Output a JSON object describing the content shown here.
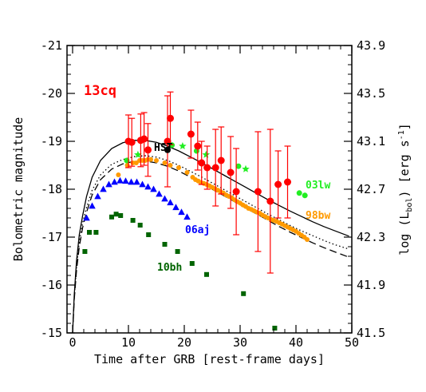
{
  "chart_data": {
    "type": "scatter",
    "title": "13cq",
    "xlabel": "Time after GRB [rest-frame days]",
    "ylabel": "Bolometric magnitude",
    "y2label_main": "log (L",
    "y2label_sub": "bol",
    "y2label_tail": ") [erg s",
    "y2label_sup": "-1",
    "y2label_end": "]",
    "xlim": [
      -1,
      50
    ],
    "ylim": [
      -15,
      -21
    ],
    "x_ticks": [
      "0",
      "10",
      "20",
      "30",
      "40",
      "50"
    ],
    "y_ticks": [
      "-15",
      "-16",
      "-17",
      "-18",
      "-19",
      "-20",
      "-21"
    ],
    "y2_ticks": [
      "41.5",
      "41.9",
      "42.3",
      "42.7",
      "43.1",
      "43.5",
      "43.9"
    ],
    "grid": false,
    "series": [
      {
        "name": "13cq",
        "color": "#ff0000",
        "marker": "circle",
        "points": [
          {
            "x": 10.0,
            "y": -19.0,
            "err": 0.55
          },
          {
            "x": 10.6,
            "y": -18.98,
            "err": 0.5
          },
          {
            "x": 12.2,
            "y": -19.02,
            "err": 0.55
          },
          {
            "x": 12.8,
            "y": -19.05,
            "err": 0.55
          },
          {
            "x": 13.5,
            "y": -18.82,
            "err": 0.55
          },
          {
            "x": 17.0,
            "y": -19.0,
            "err": 0.95
          },
          {
            "x": 17.5,
            "y": -19.48,
            "err": 0.55
          },
          {
            "x": 21.2,
            "y": -19.15,
            "err": 0.5
          },
          {
            "x": 22.4,
            "y": -18.9,
            "err": 0.5
          },
          {
            "x": 23.1,
            "y": -18.55,
            "err": 0.45
          },
          {
            "x": 24.1,
            "y": -18.45,
            "err": 0.45
          },
          {
            "x": 25.6,
            "y": -18.45,
            "err": 0.8
          },
          {
            "x": 26.6,
            "y": -18.6,
            "err": 0.7
          },
          {
            "x": 28.3,
            "y": -18.35,
            "err": 0.75
          },
          {
            "x": 29.3,
            "y": -17.95,
            "err": 0.9
          },
          {
            "x": 33.2,
            "y": -17.95,
            "err": 1.25
          },
          {
            "x": 35.4,
            "y": -17.75,
            "err": 1.5
          },
          {
            "x": 36.8,
            "y": -18.1,
            "err": 0.7
          },
          {
            "x": 38.5,
            "y": -18.15,
            "err": 0.75
          }
        ]
      },
      {
        "name": "HST",
        "color": "#000000",
        "marker": "circle",
        "points": [
          {
            "x": 17.0,
            "y": -18.82
          }
        ]
      },
      {
        "name": "03lw",
        "color": "#22ee22",
        "marker": "mixed",
        "points": [
          {
            "x": 9.7,
            "y": -18.6,
            "m": "circle"
          },
          {
            "x": 11.7,
            "y": -18.72,
            "m": "star"
          },
          {
            "x": 17.8,
            "y": -18.92,
            "m": "circle"
          },
          {
            "x": 19.7,
            "y": -18.9,
            "m": "star"
          },
          {
            "x": 22.2,
            "y": -18.8,
            "m": "circle"
          },
          {
            "x": 23.9,
            "y": -18.72,
            "m": "star"
          },
          {
            "x": 29.7,
            "y": -18.48,
            "m": "circle"
          },
          {
            "x": 31.0,
            "y": -18.42,
            "m": "star"
          },
          {
            "x": 40.6,
            "y": -17.92,
            "m": "circle"
          },
          {
            "x": 41.6,
            "y": -17.87,
            "m": "circle"
          }
        ]
      },
      {
        "name": "98bw",
        "color": "#ff9a00",
        "marker": "circle",
        "x": [
          8.2,
          9.8,
          10.8,
          11.4,
          12.0,
          12.5,
          13.0,
          13.5,
          14.0,
          15.0,
          16.5,
          17.5,
          19.0,
          20.5,
          21.5,
          22.0,
          22.5,
          23.0,
          23.5,
          24.0,
          24.5,
          25.0,
          25.5,
          26.0,
          26.5,
          27.0,
          27.5,
          28.0,
          28.5,
          29.0,
          29.5,
          30.0,
          30.5,
          31.0,
          31.5,
          32.0,
          32.5,
          33.0,
          33.5,
          34.0,
          34.5,
          35.0,
          35.5,
          36.0,
          36.5,
          37.0,
          37.5,
          38.0,
          38.5,
          39.0,
          39.5,
          40.0,
          40.5,
          41.0,
          41.5,
          42.0
        ],
        "y": [
          -18.3,
          -18.5,
          -18.55,
          -18.55,
          -18.6,
          -18.6,
          -18.6,
          -18.62,
          -18.62,
          -18.6,
          -18.55,
          -18.5,
          -18.45,
          -18.35,
          -18.25,
          -18.2,
          -18.17,
          -18.14,
          -18.12,
          -18.1,
          -18.07,
          -18.04,
          -18.01,
          -17.98,
          -17.95,
          -17.92,
          -17.88,
          -17.85,
          -17.82,
          -17.78,
          -17.74,
          -17.71,
          -17.67,
          -17.64,
          -17.6,
          -17.58,
          -17.55,
          -17.52,
          -17.5,
          -17.46,
          -17.43,
          -17.4,
          -17.37,
          -17.35,
          -17.33,
          -17.3,
          -17.27,
          -17.24,
          -17.21,
          -17.18,
          -17.15,
          -17.12,
          -17.08,
          -17.04,
          -17.0,
          -16.95
        ]
      },
      {
        "name": "06aj",
        "color": "#0000ff",
        "marker": "triangle",
        "x": [
          2.5,
          3.5,
          4.5,
          5.5,
          6.5,
          7.5,
          8.5,
          9.5,
          10.5,
          11.5,
          12.5,
          13.5,
          14.5,
          15.5,
          16.5,
          17.5,
          18.5,
          19.5,
          20.5
        ],
        "y": [
          -17.4,
          -17.65,
          -17.85,
          -18.0,
          -18.1,
          -18.15,
          -18.18,
          -18.17,
          -18.15,
          -18.15,
          -18.1,
          -18.05,
          -18.0,
          -17.9,
          -17.8,
          -17.72,
          -17.62,
          -17.52,
          -17.42
        ]
      },
      {
        "name": "10bh",
        "color": "#006400",
        "marker": "square",
        "x": [
          2.2,
          3.0,
          4.2,
          7.0,
          7.8,
          8.6,
          10.8,
          12.1,
          13.6,
          16.5,
          18.8,
          21.4,
          24.0,
          30.6,
          36.2
        ],
        "y": [
          -16.7,
          -17.1,
          -17.1,
          -17.42,
          -17.48,
          -17.45,
          -17.35,
          -17.25,
          -17.05,
          -16.85,
          -16.7,
          -16.45,
          -16.22,
          -15.82,
          -15.1
        ]
      }
    ],
    "curves": [
      {
        "style": "solid",
        "x": [
          0.0,
          0.3,
          0.7,
          1.2,
          1.8,
          2.5,
          3.5,
          5,
          7,
          9,
          11,
          13,
          15,
          17,
          19,
          21,
          23,
          25,
          27,
          29,
          31,
          33,
          35,
          37,
          39,
          41,
          43,
          45,
          47,
          49.5
        ],
        "y": [
          -15.0,
          -15.8,
          -16.5,
          -17.05,
          -17.45,
          -17.85,
          -18.25,
          -18.6,
          -18.85,
          -18.97,
          -19.02,
          -19.02,
          -18.98,
          -18.9,
          -18.8,
          -18.68,
          -18.56,
          -18.43,
          -18.3,
          -18.17,
          -18.04,
          -17.91,
          -17.78,
          -17.66,
          -17.54,
          -17.43,
          -17.32,
          -17.22,
          -17.13,
          -17.02
        ]
      },
      {
        "style": "dotted",
        "x": [
          0.0,
          0.3,
          0.7,
          1.2,
          1.8,
          2.5,
          3.5,
          5,
          7,
          9,
          11,
          13,
          15,
          17,
          19,
          21,
          23,
          25,
          27,
          29,
          31,
          33,
          35,
          37,
          39,
          41,
          43,
          45,
          47,
          49.5
        ],
        "y": [
          -15.0,
          -15.75,
          -16.35,
          -16.9,
          -17.3,
          -17.62,
          -17.98,
          -18.3,
          -18.52,
          -18.62,
          -18.68,
          -18.7,
          -18.67,
          -18.6,
          -18.5,
          -18.38,
          -18.26,
          -18.13,
          -18.0,
          -17.87,
          -17.74,
          -17.61,
          -17.48,
          -17.36,
          -17.24,
          -17.13,
          -17.03,
          -16.93,
          -16.84,
          -16.75
        ]
      },
      {
        "style": "dashed",
        "x": [
          0.0,
          0.3,
          0.7,
          1.2,
          1.8,
          2.5,
          3.5,
          5,
          7,
          9,
          11,
          13,
          15,
          17,
          19,
          21,
          23,
          25,
          27,
          29,
          31,
          33,
          35,
          37,
          39,
          41,
          43,
          45,
          47,
          49.5
        ],
        "y": [
          -15.0,
          -15.7,
          -16.3,
          -16.8,
          -17.2,
          -17.52,
          -17.88,
          -18.2,
          -18.42,
          -18.53,
          -18.58,
          -18.59,
          -18.55,
          -18.48,
          -18.38,
          -18.26,
          -18.13,
          -18.0,
          -17.87,
          -17.74,
          -17.61,
          -17.48,
          -17.35,
          -17.22,
          -17.1,
          -16.99,
          -16.88,
          -16.78,
          -16.69,
          -16.58
        ]
      }
    ],
    "annotations": [
      {
        "text": "13cq",
        "color": "#ff0000"
      },
      {
        "text": "HST",
        "color": "#000000"
      },
      {
        "text": "03lw",
        "color": "#22ee22"
      },
      {
        "text": "98bw",
        "color": "#ff9a00"
      },
      {
        "text": "06aj",
        "color": "#0000ff"
      },
      {
        "text": "10bh",
        "color": "#006400"
      }
    ]
  }
}
